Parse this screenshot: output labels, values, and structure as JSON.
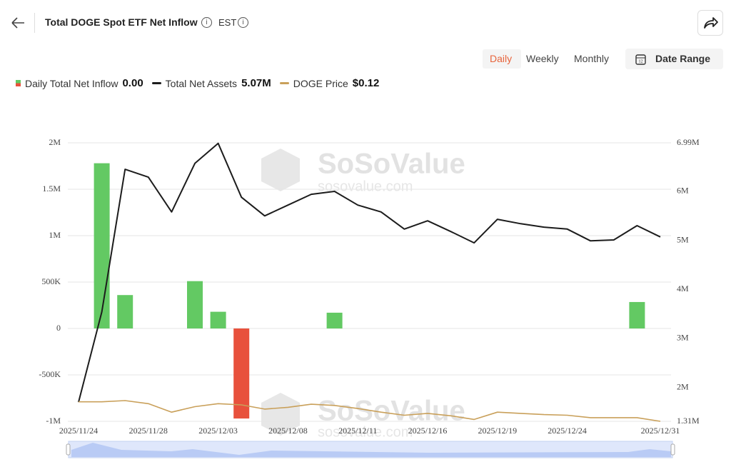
{
  "header": {
    "title": "Total DOGE Spot ETF Net Inflow",
    "timezone": "EST"
  },
  "controls": {
    "tabs": [
      "Daily",
      "Weekly",
      "Monthly"
    ],
    "active_tab": 0,
    "date_range": "Date Range"
  },
  "watermark": {
    "brand": "SoSoValue",
    "site": "sosovalue.com"
  },
  "chart_data": {
    "type": "combo",
    "categories": [
      "2025/11/24",
      null,
      null,
      "2025/11/28",
      null,
      null,
      "2025/12/03",
      null,
      null,
      "2025/12/08",
      null,
      null,
      "2025/12/11",
      null,
      null,
      "2025/12/16",
      null,
      null,
      "2025/12/19",
      null,
      null,
      "2025/12/24",
      null,
      null,
      null,
      "2025/12/31"
    ],
    "ylim": [
      -1000000,
      2000000
    ],
    "yticks": [
      {
        "value": -1000000,
        "label": "-1M"
      },
      {
        "value": -500000,
        "label": "-500K"
      },
      0,
      {
        "value": 500000,
        "label": "500K"
      },
      {
        "value": 1000000,
        "label": "1M"
      },
      {
        "value": 1500000,
        "label": "1.5M"
      },
      {
        "value": 2000000,
        "label": "2M"
      }
    ],
    "y2lim": [
      1310000,
      6990000
    ],
    "y2ticks": [
      {
        "value": 1310000,
        "label": "1.31M"
      },
      {
        "value": 2000000,
        "label": "2M"
      },
      {
        "value": 3000000,
        "label": "3M"
      },
      {
        "value": 4000000,
        "label": "4M"
      },
      {
        "value": 5000000,
        "label": "5M"
      },
      {
        "value": 6000000,
        "label": "6M"
      },
      {
        "value": 6990000,
        "label": "6.99M"
      }
    ],
    "grid": true,
    "series": [
      {
        "name": "Daily Total Net Inflow",
        "type": "bar",
        "color": "#63c963",
        "negative_color": "#e8513c",
        "legend_value": "0.00",
        "values": [
          0,
          1780000,
          360000,
          0,
          0,
          510000,
          180000,
          -970000,
          0,
          0,
          0,
          170000,
          0,
          0,
          0,
          0,
          0,
          0,
          0,
          0,
          0,
          0,
          0,
          0,
          285000,
          0
        ]
      },
      {
        "name": "Total Net Assets",
        "type": "line",
        "axis": "y2",
        "color": "#1c1c1c",
        "legend_value": "5.07M",
        "values": [
          1700000,
          3540000,
          6450000,
          6290000,
          5580000,
          6570000,
          6980000,
          5880000,
          5500000,
          5720000,
          5940000,
          6000000,
          5720000,
          5580000,
          5230000,
          5400000,
          5180000,
          4950000,
          5430000,
          5340000,
          5270000,
          5230000,
          4990000,
          5010000,
          5300000,
          5070000
        ]
      },
      {
        "name": "DOGE Price",
        "type": "line",
        "axis": "y3",
        "color": "#c9a05a",
        "legend_value": "$0.12",
        "values": [
          0.152,
          0.152,
          0.154,
          0.149,
          0.135,
          0.144,
          0.149,
          0.147,
          0.14,
          0.143,
          0.148,
          0.146,
          0.141,
          0.135,
          0.13,
          0.133,
          0.129,
          0.123,
          0.135,
          0.133,
          0.131,
          0.13,
          0.126,
          0.126,
          0.126,
          0.12
        ]
      }
    ]
  }
}
